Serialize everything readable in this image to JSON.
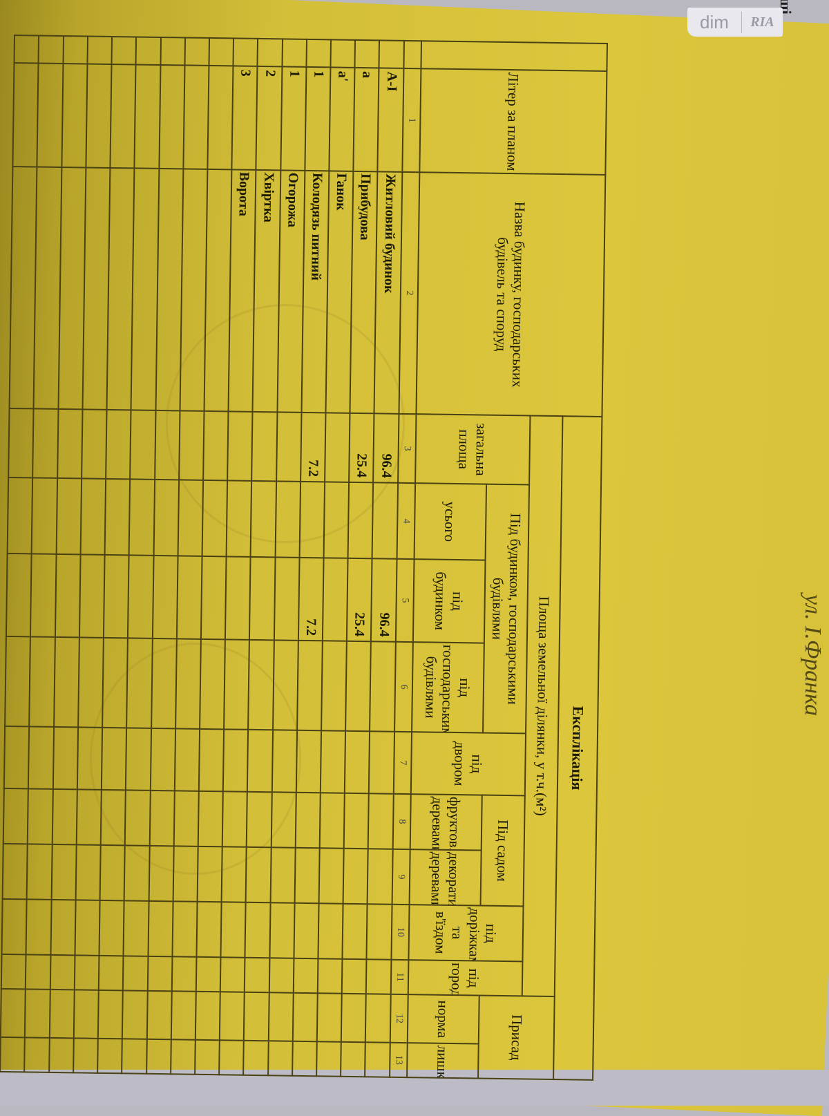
{
  "watermark": {
    "part1": "dim",
    "part2": "RIA"
  },
  "background_label": "ші",
  "street": "ул. І.Франка",
  "document": {
    "title": "Експлікація",
    "group_header": "Площа земельної ділянки, у т.ч.(м²)",
    "right_partial_header": "Присад",
    "headers": {
      "letter": "Літер за планом",
      "name": "Назва будинку, господарських будівель та споруд",
      "total": "загальна площа",
      "buildings_group": "Під будинком, господарськими будівлями",
      "all": "усього",
      "under_house": "під будинком",
      "under_outbuildings": "під господарськими будівлями",
      "yard": "під двором",
      "garden_group": "Під садом",
      "fruit": "фруктов. деревами",
      "decor": "декоратив. деревами",
      "paths": "під доріжками та в'їздом",
      "vegetable": "під городом",
      "norm": "норма",
      "excess": "лишки"
    },
    "column_numbers": [
      "1",
      "2",
      "3",
      "4",
      "5",
      "6",
      "7",
      "8",
      "9",
      "10",
      "11",
      "12",
      "13"
    ],
    "rows": [
      {
        "letter": "А-І",
        "name": "Житловий будинок",
        "total": "96.4",
        "under_house": "96.4"
      },
      {
        "letter": "а",
        "name": "Прибудова",
        "total": "25.4",
        "under_house": "25.4"
      },
      {
        "letter": "а'",
        "name": "Ганок",
        "total": "",
        "under_house": ""
      },
      {
        "letter": "1",
        "name": "Колодязь питний",
        "total": "7.2",
        "under_house": "7.2"
      },
      {
        "letter": "1",
        "name": "Огорожа",
        "total": "",
        "under_house": ""
      },
      {
        "letter": "2",
        "name": "Хвіртка",
        "total": "",
        "under_house": ""
      },
      {
        "letter": "3",
        "name": "Ворота",
        "total": "",
        "under_house": ""
      }
    ]
  }
}
